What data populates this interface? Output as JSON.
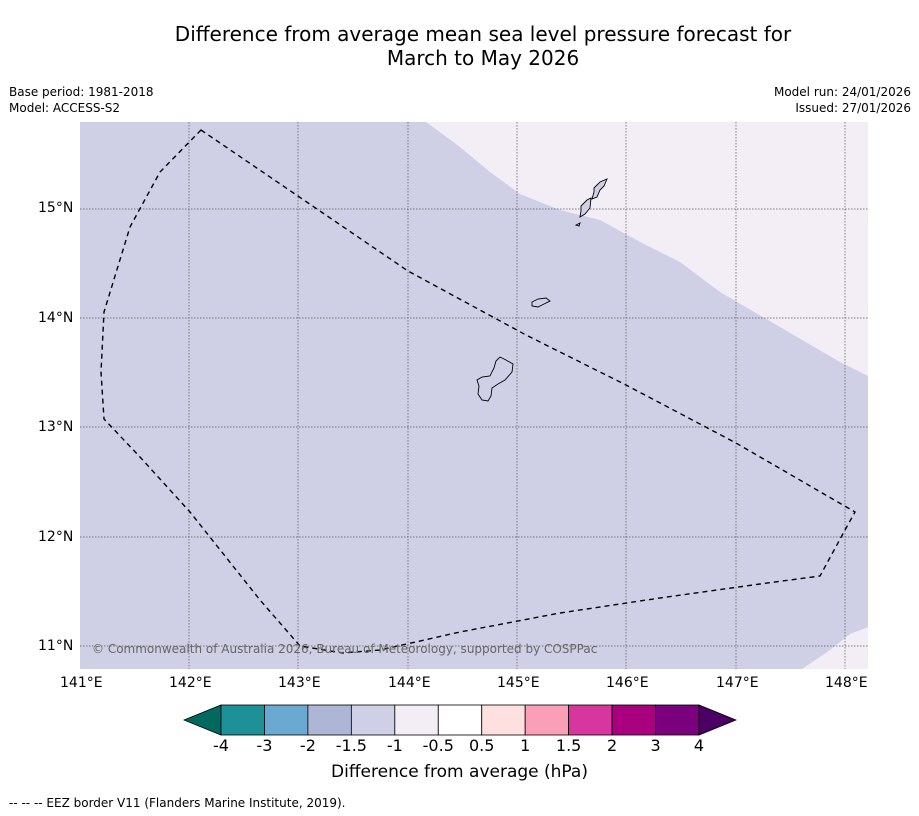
{
  "title_line1": "Difference from average mean sea level pressure forecast for",
  "title_line2": "March to May 2026",
  "meta_left": {
    "base_period": "Base period: 1981-2018",
    "model": "Model: ACCESS-S2"
  },
  "meta_right": {
    "model_run": "Model run: 24/01/2026",
    "issued": "Issued: 27/01/2026"
  },
  "map": {
    "lon_range": [
      141.0,
      148.2
    ],
    "lat_range": [
      10.8,
      15.8
    ],
    "lon_ticks": [
      "141°E",
      "142°E",
      "143°E",
      "144°E",
      "145°E",
      "146°E",
      "147°E",
      "148°E"
    ],
    "lat_ticks": [
      "15°N",
      "14°N",
      "13°N",
      "12°N",
      "11°N"
    ],
    "background_category": "-1.5 to -1",
    "background_color": "#cfd0e6",
    "light_category": "-1 to -0.5",
    "light_color": "#f3edf6",
    "copyright": "© Commonwealth of Australia 2026, Bureau of Meteorology, supported by COSPPac"
  },
  "colorbar": {
    "title": "Difference from average (hPa)",
    "ticks": [
      "-4",
      "-3",
      "-2",
      "-1.5",
      "-1",
      "-0.5",
      "0.5",
      "1",
      "1.5",
      "2",
      "3",
      "4"
    ],
    "colors": [
      "#02695e",
      "#1e9198",
      "#6aaad2",
      "#aeb6d6",
      "#cfd0e6",
      "#f3edf6",
      "#ffffff",
      "#fde0df",
      "#f9a0b8",
      "#d8369f",
      "#a8007f",
      "#7b007d",
      "#4b0063"
    ]
  },
  "footer": "--  --  -- EEZ border V11 (Flanders Marine Institute, 2019)."
}
